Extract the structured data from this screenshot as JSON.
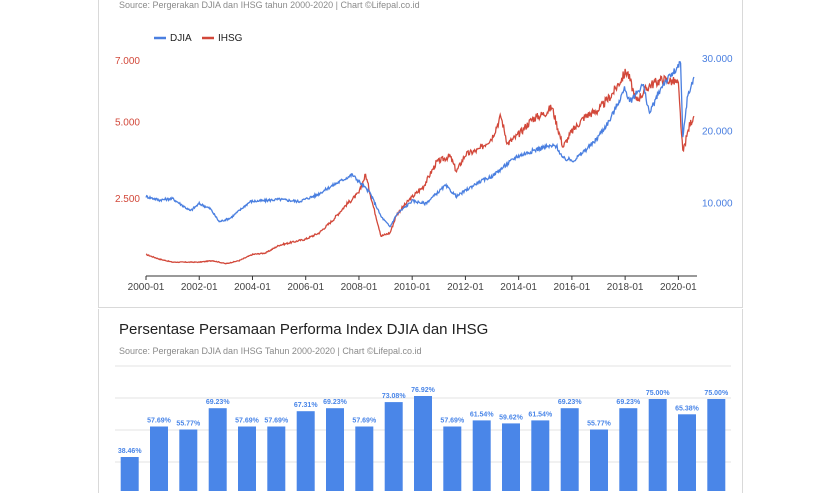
{
  "top_panel": {
    "source": "Source: Pergerakan DJIA dan IHSG tahun 2000-2020 | Chart ©Lifepal.co.id"
  },
  "bottom_panel": {
    "title": "Persentase Persamaan Performa Index DJIA dan IHSG",
    "source": "Source: Pergerakan DJIA dan IHSG Tahun 2000-2020 | Chart ©Lifepal.co.id"
  },
  "colors": {
    "djia": "#4a7fe0",
    "ihsg": "#d2483a",
    "bar": "#4a86e8",
    "grid": "#e3e3e3"
  },
  "chart_data": [
    {
      "type": "line",
      "legend": [
        "DJIA",
        "IHSG"
      ],
      "legend_position": "top-left",
      "x_ticks": [
        "2000-01",
        "2002-01",
        "2004-01",
        "2006-01",
        "2008-01",
        "2010-01",
        "2012-01",
        "2014-01",
        "2016-01",
        "2018-01",
        "2020-01"
      ],
      "y_left_ticks": [
        "2.500",
        "5.000",
        "7.000"
      ],
      "y_right_ticks": [
        "10.000",
        "20.000",
        "30.000"
      ],
      "y_left_range": [
        0,
        8000
      ],
      "y_right_range": [
        0,
        34000
      ],
      "series": [
        {
          "name": "IHSG",
          "axis": "left",
          "points": [
            [
              "2000-01",
              700
            ],
            [
              "2000-07",
              550
            ],
            [
              "2001-01",
              450
            ],
            [
              "2001-07",
              450
            ],
            [
              "2002-01",
              450
            ],
            [
              "2002-07",
              500
            ],
            [
              "2003-01",
              400
            ],
            [
              "2003-07",
              500
            ],
            [
              "2004-01",
              700
            ],
            [
              "2004-07",
              750
            ],
            [
              "2005-01",
              1000
            ],
            [
              "2005-07",
              1100
            ],
            [
              "2006-01",
              1200
            ],
            [
              "2006-07",
              1400
            ],
            [
              "2007-01",
              1800
            ],
            [
              "2007-07",
              2300
            ],
            [
              "2008-01",
              2700
            ],
            [
              "2008-04",
              3300
            ],
            [
              "2008-07",
              2400
            ],
            [
              "2008-11",
              1300
            ],
            [
              "2009-03",
              1400
            ],
            [
              "2009-06",
              2000
            ],
            [
              "2009-12",
              2500
            ],
            [
              "2010-06",
              2900
            ],
            [
              "2010-12",
              3700
            ],
            [
              "2011-06",
              3900
            ],
            [
              "2011-09",
              3400
            ],
            [
              "2012-01",
              3950
            ],
            [
              "2012-07",
              4100
            ],
            [
              "2013-01",
              4500
            ],
            [
              "2013-05",
              5200
            ],
            [
              "2013-08",
              4300
            ],
            [
              "2014-01",
              4600
            ],
            [
              "2014-07",
              5100
            ],
            [
              "2015-01",
              5300
            ],
            [
              "2015-04",
              5500
            ],
            [
              "2015-09",
              4200
            ],
            [
              "2016-01",
              4700
            ],
            [
              "2016-07",
              5200
            ],
            [
              "2017-01",
              5400
            ],
            [
              "2017-07",
              5900
            ],
            [
              "2018-01",
              6600
            ],
            [
              "2018-02",
              6650
            ],
            [
              "2018-06",
              5700
            ],
            [
              "2018-12",
              6200
            ],
            [
              "2019-06",
              6400
            ],
            [
              "2019-12",
              6300
            ],
            [
              "2020-01",
              6200
            ],
            [
              "2020-03",
              4000
            ],
            [
              "2020-06",
              4900
            ],
            [
              "2020-08",
              5200
            ]
          ]
        },
        {
          "name": "DJIA",
          "axis": "right",
          "points": [
            [
              "2000-01",
              11000
            ],
            [
              "2000-07",
              10500
            ],
            [
              "2001-01",
              10700
            ],
            [
              "2001-09",
              9000
            ],
            [
              "2002-01",
              10000
            ],
            [
              "2002-06",
              9300
            ],
            [
              "2002-10",
              7500
            ],
            [
              "2003-03",
              8000
            ],
            [
              "2003-12",
              10300
            ],
            [
              "2004-06",
              10400
            ],
            [
              "2005-01",
              10600
            ],
            [
              "2005-10",
              10300
            ],
            [
              "2006-06",
              11200
            ],
            [
              "2007-01",
              12500
            ],
            [
              "2007-10",
              14000
            ],
            [
              "2008-06",
              11500
            ],
            [
              "2008-11",
              8200
            ],
            [
              "2009-03",
              6800
            ],
            [
              "2009-06",
              8500
            ],
            [
              "2010-01",
              10400
            ],
            [
              "2010-07",
              10000
            ],
            [
              "2011-04",
              12500
            ],
            [
              "2011-09",
              11000
            ],
            [
              "2012-06",
              12800
            ],
            [
              "2013-01",
              13800
            ],
            [
              "2013-12",
              16500
            ],
            [
              "2014-12",
              17800
            ],
            [
              "2015-06",
              18000
            ],
            [
              "2015-09",
              16200
            ],
            [
              "2016-02",
              16000
            ],
            [
              "2016-11",
              18500
            ],
            [
              "2017-06",
              21500
            ],
            [
              "2018-01",
              26000
            ],
            [
              "2018-03",
              24000
            ],
            [
              "2018-09",
              26500
            ],
            [
              "2018-12",
              22500
            ],
            [
              "2019-06",
              26500
            ],
            [
              "2019-12",
              28500
            ],
            [
              "2020-02",
              29400
            ],
            [
              "2020-03",
              19000
            ],
            [
              "2020-05",
              24500
            ],
            [
              "2020-08",
              27500
            ]
          ]
        }
      ]
    },
    {
      "type": "bar",
      "title": "Persentase Persamaan Performa Index DJIA dan IHSG",
      "values": [
        38.46,
        57.69,
        55.77,
        69.23,
        57.69,
        57.69,
        67.31,
        69.23,
        57.69,
        73.08,
        76.92,
        57.69,
        61.54,
        59.62,
        61.54,
        69.23,
        55.77,
        69.23,
        75.0,
        65.38,
        75.0
      ],
      "labels": [
        "38.46%",
        "57.69%",
        "55.77%",
        "69.23%",
        "57.69%",
        "57.69%",
        "67.31%",
        "69.23%",
        "57.69%",
        "73.08%",
        "76.92%",
        "57.69%",
        "61.54%",
        "59.62%",
        "61.54%",
        "69.23%",
        "55.77%",
        "69.23%",
        "75.00%",
        "65.38%",
        "75.00%"
      ]
    }
  ]
}
